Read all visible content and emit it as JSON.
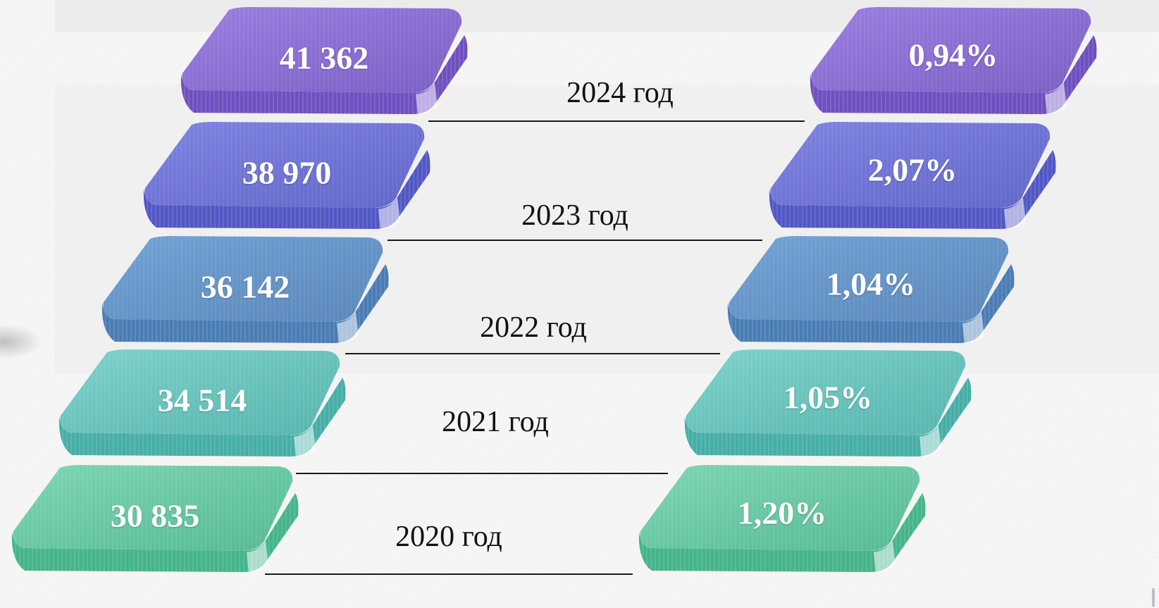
{
  "chart_data": {
    "type": "table",
    "rows": [
      {
        "year": "2024 год",
        "value": "41 362",
        "percent": "0,94%",
        "color_top": "#9b7fe0",
        "color_side": "#6f4fc0"
      },
      {
        "year": "2023 год",
        "value": "38 970",
        "percent": "2,07%",
        "color_top": "#7f84e2",
        "color_side": "#5257c4"
      },
      {
        "year": "2022 год",
        "value": "36 142",
        "percent": "1,04%",
        "color_top": "#72a3d6",
        "color_side": "#4a7cb4"
      },
      {
        "year": "2021 год",
        "value": "34 514",
        "percent": "1,05%",
        "color_top": "#7fd3cc",
        "color_side": "#46aea6"
      },
      {
        "year": "2020 год",
        "value": "30 835",
        "percent": "1,20%",
        "color_top": "#7fd6b4",
        "color_side": "#45b48a"
      }
    ]
  }
}
